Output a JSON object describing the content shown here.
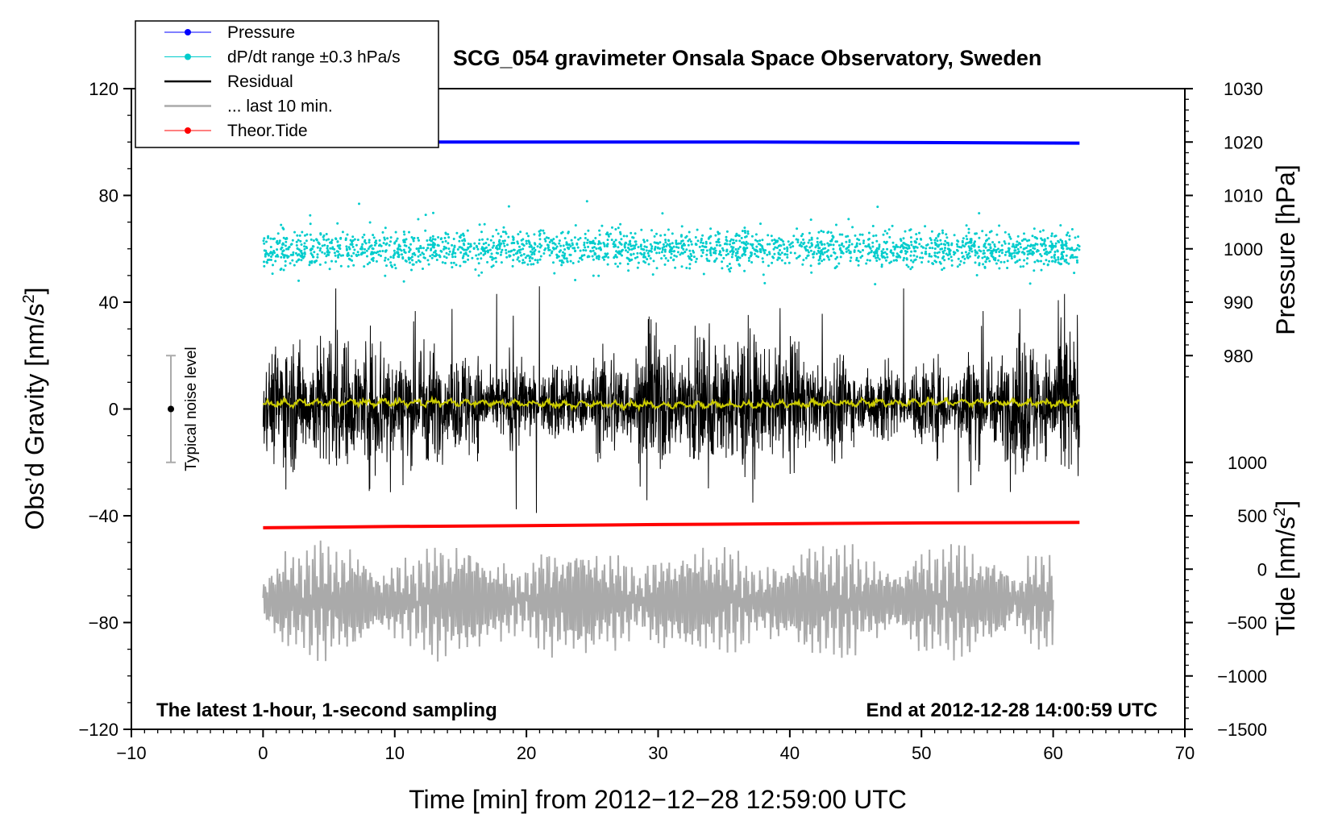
{
  "chart_data": {
    "type": "line",
    "title": "SCG_054 gravimeter Onsala Space Observatory, Sweden",
    "xlabel": "Time [min] from 2012−12−28 12:59:00 UTC",
    "ylabel_left": "Obs’d Gravity [nm/s",
    "ylabel_left_sup": "2",
    "ylabel_left_end": "]",
    "ylabel_pressure": "Pressure [hPa]",
    "ylabel_tide": "Tide [nm/s",
    "ylabel_tide_sup": "2",
    "ylabel_tide_end": "]",
    "xlim": [
      -10,
      70
    ],
    "ylim": [
      -120,
      120
    ],
    "x_ticks": [
      -10,
      0,
      10,
      20,
      30,
      40,
      50,
      60,
      70
    ],
    "x_tick_labels": [
      "−10",
      "0",
      "10",
      "20",
      "30",
      "40",
      "50",
      "60",
      "70"
    ],
    "y_ticks": [
      120,
      80,
      40,
      0,
      -40,
      -80,
      -120
    ],
    "y_tick_labels": [
      "120",
      "80",
      "40",
      "0",
      "−40",
      "−80",
      "−120"
    ],
    "pressure_axis": {
      "ticks": [
        1030,
        1020,
        1010,
        1000,
        990,
        980
      ],
      "labels": [
        "1030",
        "1020",
        "1010",
        "1000",
        "990",
        "980"
      ],
      "gravity_at_1030": 120,
      "gravity_per_hpa": 2
    },
    "tide_axis": {
      "ticks": [
        1000,
        500,
        0,
        -500,
        -1000,
        -1500
      ],
      "labels": [
        "1000",
        "500",
        "0",
        "−500",
        "−1000",
        "−1500"
      ],
      "gravity_at_minus_1500": -120,
      "gravity_per_unit": 0.04
    },
    "legend": [
      {
        "label": "Pressure",
        "color": "#0000ff",
        "style": "line-dot"
      },
      {
        "label": "dP/dt range ±0.3 hPa/s",
        "color": "#00cccc",
        "style": "line-dot"
      },
      {
        "label": "Residual",
        "color": "#000000",
        "style": "line"
      },
      {
        "label": "... last 10 min.",
        "color": "#aaaaaa",
        "style": "line"
      },
      {
        "label": "Theor.Tide",
        "color": "#ff0000",
        "style": "line-dot"
      }
    ],
    "series": [
      {
        "name": "Pressure",
        "color": "#0000ff",
        "x_range": [
          0,
          62
        ],
        "level_hpa": 1020,
        "y_gravity": [
          100,
          100,
          100,
          100,
          99.8,
          99.6
        ]
      },
      {
        "name": "dP/dt range ±0.3 hPa/s",
        "color": "#00cccc",
        "x_range": [
          0,
          62
        ],
        "center": 60,
        "spread": 12
      },
      {
        "name": "Residual",
        "color": "#000000",
        "x_range": [
          0,
          62
        ],
        "mean": 2,
        "spread": 45
      },
      {
        "name": "Residual (smoothed)",
        "color": "#cccc00",
        "x_range": [
          0,
          62
        ],
        "level": 2
      },
      {
        "name": "... last 10 min.",
        "color": "#aaaaaa",
        "x_range": [
          0,
          60
        ],
        "center": -72,
        "spread": 38
      },
      {
        "name": "Theor.Tide",
        "color": "#ff0000",
        "x": [
          0,
          10,
          20,
          30,
          40,
          50,
          62
        ],
        "y": [
          -44.5,
          -44,
          -43.7,
          -43.3,
          -43,
          -42.7,
          -42.5
        ]
      }
    ],
    "noise_marker": {
      "label": "Typical noise level",
      "x": -7,
      "y": 0,
      "range": [
        -20,
        20
      ]
    },
    "annotations": {
      "left": "The latest 1-hour, 1-second sampling",
      "right": "End at 2012-12-28 14:00:59 UTC"
    }
  }
}
